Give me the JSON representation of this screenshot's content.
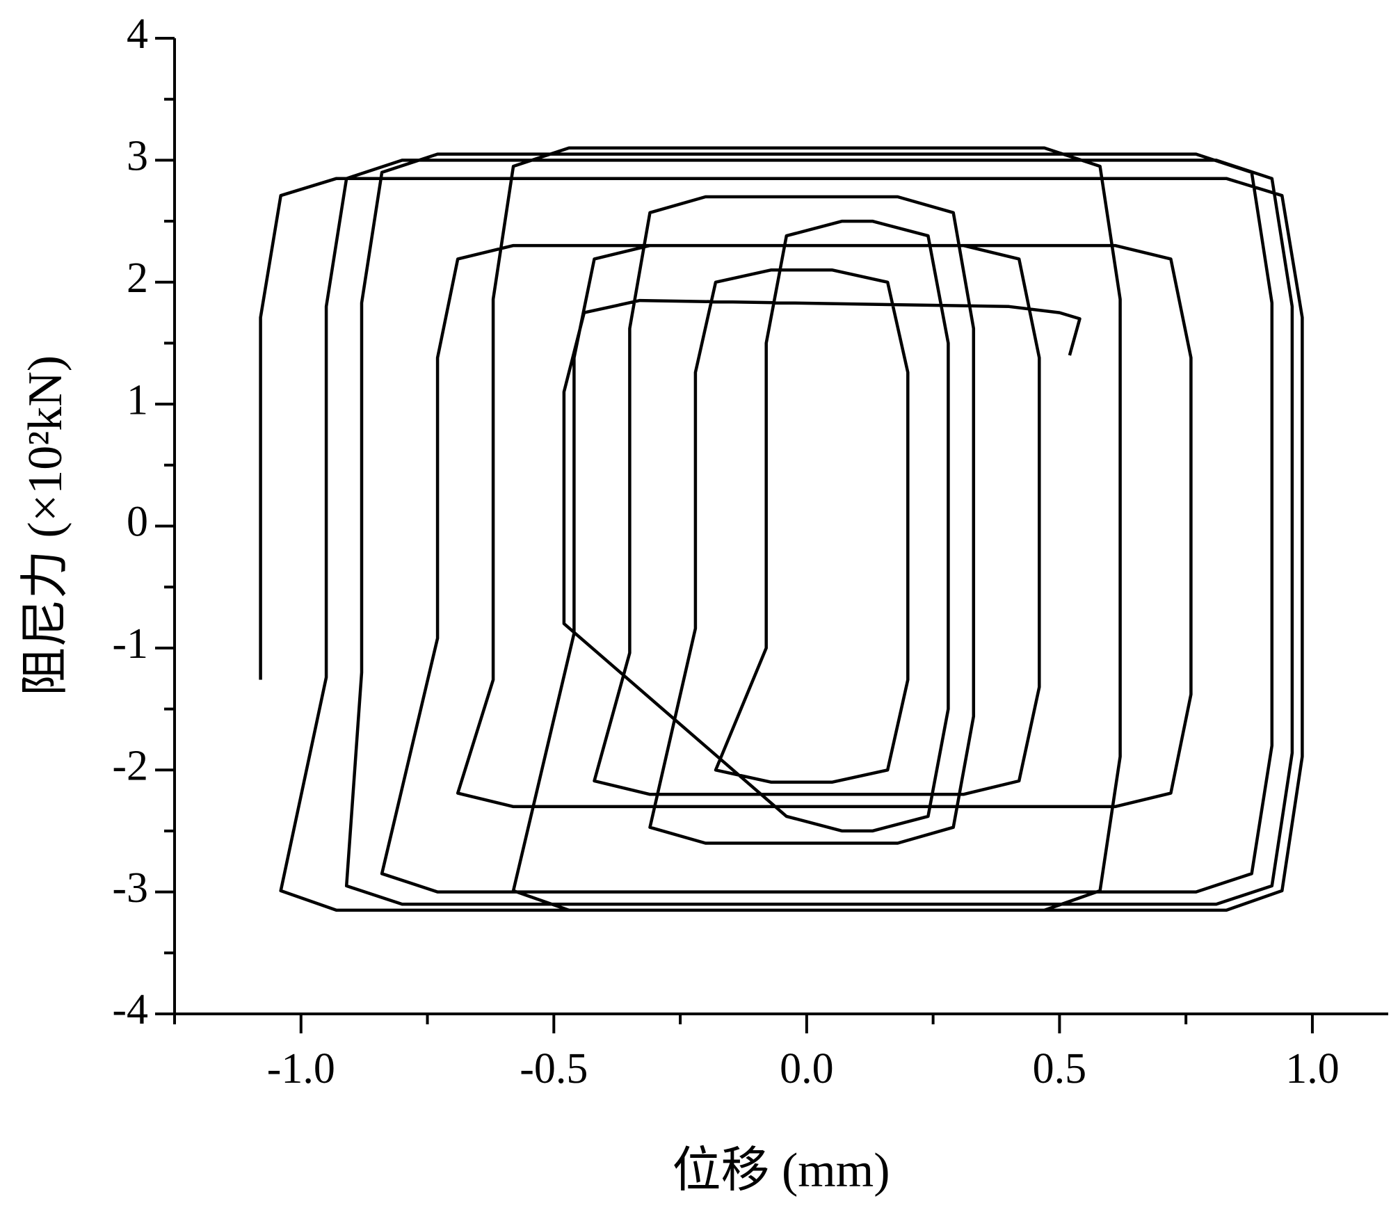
{
  "chart_data": {
    "type": "line",
    "x_label": "位移 (mm)",
    "y_label": "阻尼力 (×10²kN)",
    "color": "#000000",
    "xlim": [
      -1.25,
      1.15
    ],
    "ylim": [
      -4,
      4
    ],
    "xticks": [
      {
        "value": -1,
        "label": "-1.0"
      },
      {
        "value": -0.5,
        "label": "-0.5"
      },
      {
        "value": 0,
        "label": "0.0"
      },
      {
        "value": 0.5,
        "label": "0.5"
      },
      {
        "value": 1,
        "label": "1.0"
      }
    ],
    "yticks": [
      -4,
      -3,
      -2,
      -1,
      0,
      1,
      2,
      3,
      4
    ],
    "x_minor_ticks": [
      -1.25,
      -0.75,
      -0.25,
      0.25,
      0.75
    ],
    "y_minor_ticks": [
      -3.5,
      -2.5,
      -1.5,
      -0.5,
      0.5,
      1.5,
      2.5,
      3.5
    ],
    "x": [
      -1.08,
      -1.08,
      -1.04,
      -0.93,
      0.83,
      0.94,
      0.98,
      0.98,
      0.94,
      0.83,
      -0.93,
      -1.04,
      -0.95,
      -0.95,
      -0.91,
      -0.8,
      0.81,
      0.92,
      0.96,
      0.96,
      0.92,
      0.81,
      -0.8,
      -0.91,
      -0.88,
      -0.88,
      -0.84,
      -0.73,
      0.77,
      0.88,
      0.92,
      0.92,
      0.88,
      0.77,
      -0.73,
      -0.84,
      -0.73,
      -0.73,
      -0.69,
      -0.58,
      0.61,
      0.72,
      0.76,
      0.76,
      0.72,
      0.61,
      -0.58,
      -0.69,
      -0.62,
      -0.62,
      -0.58,
      -0.47,
      0.47,
      0.58,
      0.62,
      0.62,
      0.58,
      0.47,
      -0.47,
      -0.58,
      -0.46,
      -0.46,
      -0.42,
      -0.31,
      0.31,
      0.42,
      0.46,
      0.46,
      0.42,
      0.31,
      -0.31,
      -0.42,
      -0.35,
      -0.35,
      -0.31,
      -0.2,
      0.18,
      0.29,
      0.33,
      0.33,
      0.29,
      0.18,
      -0.2,
      -0.31,
      -0.22,
      -0.22,
      -0.18,
      -0.07,
      0.05,
      0.16,
      0.2,
      0.2,
      0.16,
      0.05,
      -0.07,
      -0.18,
      -0.08,
      -0.08,
      -0.04,
      0.07,
      0.13,
      0.24,
      0.28,
      0.28,
      0.24,
      0.13,
      0.07,
      -0.04,
      -0.48,
      -0.48,
      -0.44,
      -0.33,
      0.4,
      0.5,
      0.54,
      0.52
    ],
    "values": [
      -1.26,
      1.71,
      2.71,
      2.85,
      2.85,
      2.71,
      1.71,
      -1.89,
      -2.99,
      -3.15,
      -3.15,
      -2.99,
      -1.24,
      1.8,
      2.85,
      3.0,
      3.0,
      2.85,
      1.8,
      -1.86,
      -2.95,
      -3.1,
      -3.1,
      -2.95,
      -1.2,
      1.83,
      2.9,
      3.05,
      3.05,
      2.9,
      1.83,
      -1.8,
      -2.85,
      -3.0,
      -3.0,
      -2.85,
      -0.92,
      1.38,
      2.19,
      2.3,
      2.3,
      2.19,
      1.38,
      -1.38,
      -2.19,
      -2.3,
      -2.3,
      -2.19,
      -1.26,
      1.86,
      2.95,
      3.1,
      3.1,
      2.95,
      1.86,
      -1.89,
      -2.99,
      -3.15,
      -3.15,
      -2.99,
      -0.88,
      1.38,
      2.19,
      2.3,
      2.3,
      2.19,
      1.38,
      -1.32,
      -2.09,
      -2.2,
      -2.2,
      -2.09,
      -1.04,
      1.62,
      2.57,
      2.7,
      2.7,
      2.57,
      1.62,
      -1.56,
      -2.47,
      -2.6,
      -2.6,
      -2.47,
      -0.84,
      1.26,
      2.0,
      2.1,
      2.1,
      2.0,
      1.26,
      -1.26,
      -2.0,
      -2.1,
      -2.1,
      -2.0,
      -1.0,
      1.5,
      2.38,
      2.5,
      2.5,
      2.38,
      1.5,
      -1.5,
      -2.38,
      -2.5,
      -2.5,
      -2.38,
      -0.8,
      1.1,
      1.75,
      1.85,
      1.8,
      1.75,
      1.7,
      1.4
    ]
  }
}
